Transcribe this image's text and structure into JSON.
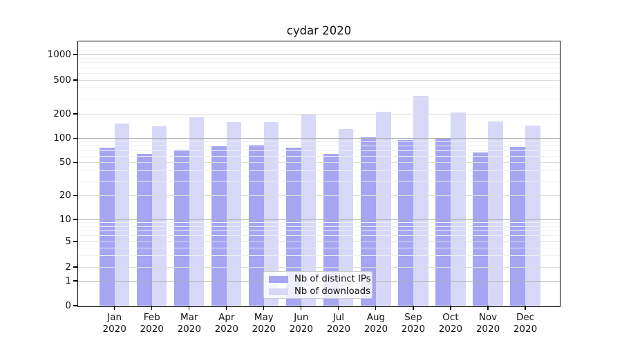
{
  "title": "cydar 2020",
  "colors": {
    "ips_bar": "#a5a5f2",
    "downloads_bar": "#d7d7f8",
    "grid_major": "#b0b0b0",
    "grid_mid": "#dcdcdc",
    "grid_minor": "#f0f0f0"
  },
  "legend": {
    "items": [
      {
        "label": "Nb of distinct IPs",
        "series": "ips"
      },
      {
        "label": "Nb of downloads",
        "series": "downloads"
      }
    ]
  },
  "chart_data": {
    "type": "bar",
    "title": "cydar 2020",
    "categories": [
      "Jan 2020",
      "Feb 2020",
      "Mar 2020",
      "Apr 2020",
      "May 2020",
      "Jun 2020",
      "Jul 2020",
      "Aug 2020",
      "Sep 2020",
      "Oct 2020",
      "Nov 2020",
      "Dec 2020"
    ],
    "series": [
      {
        "name": "Nb of distinct IPs",
        "color": "#a5a5f2",
        "values": [
          76,
          64,
          72,
          81,
          83,
          77,
          64,
          103,
          96,
          100,
          67,
          78
        ]
      },
      {
        "name": "Nb of downloads",
        "color": "#d7d7f8",
        "values": [
          152,
          141,
          181,
          158,
          158,
          201,
          129,
          210,
          325,
          207,
          161,
          144
        ]
      }
    ],
    "xlabel": "",
    "ylabel": "",
    "y_scale": "symlog",
    "y_ticks": [
      0,
      1,
      2,
      5,
      10,
      20,
      50,
      100,
      200,
      500,
      1000
    ],
    "ylim": [
      0,
      1450
    ],
    "grid": true,
    "legend_position": "lower center"
  }
}
